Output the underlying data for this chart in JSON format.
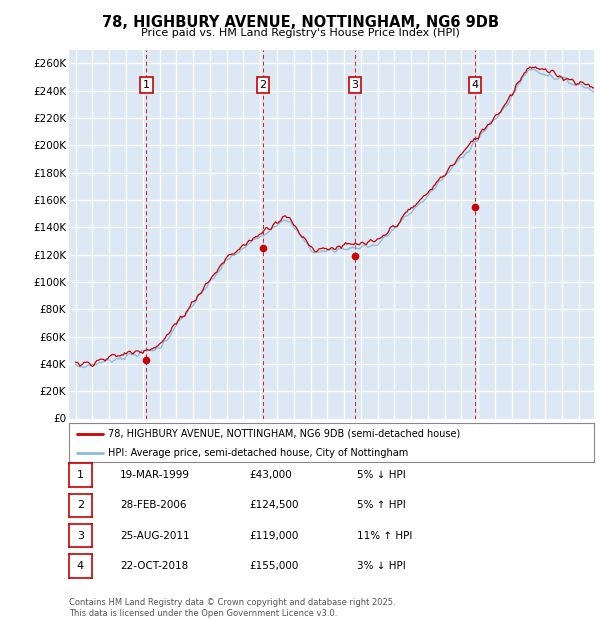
{
  "title": "78, HIGHBURY AVENUE, NOTTINGHAM, NG6 9DB",
  "subtitle": "Price paid vs. HM Land Registry's House Price Index (HPI)",
  "ylabel_ticks": [
    "£0",
    "£20K",
    "£40K",
    "£60K",
    "£80K",
    "£100K",
    "£120K",
    "£140K",
    "£160K",
    "£180K",
    "£200K",
    "£220K",
    "£240K",
    "£260K"
  ],
  "y_values": [
    0,
    20000,
    40000,
    60000,
    80000,
    100000,
    120000,
    140000,
    160000,
    180000,
    200000,
    220000,
    240000,
    260000
  ],
  "background_color": "#dce9f5",
  "plot_bg": "#dce9f5",
  "grid_color": "#ffffff",
  "sale_points": [
    {
      "date_num": 1999.21,
      "price": 43000,
      "label": "1"
    },
    {
      "date_num": 2006.16,
      "price": 124500,
      "label": "2"
    },
    {
      "date_num": 2011.65,
      "price": 119000,
      "label": "3"
    },
    {
      "date_num": 2018.81,
      "price": 155000,
      "label": "4"
    }
  ],
  "legend_line1_color": "#cc0000",
  "legend_line1_label": "78, HIGHBURY AVENUE, NOTTINGHAM, NG6 9DB (semi-detached house)",
  "legend_line2_color": "#88bbdd",
  "legend_line2_label": "HPI: Average price, semi-detached house, City of Nottingham",
  "table_rows": [
    {
      "num": "1",
      "date": "19-MAR-1999",
      "price": "£43,000",
      "change": "5% ↓ HPI"
    },
    {
      "num": "2",
      "date": "28-FEB-2006",
      "price": "£124,500",
      "change": "5% ↑ HPI"
    },
    {
      "num": "3",
      "date": "25-AUG-2011",
      "price": "£119,000",
      "change": "11% ↑ HPI"
    },
    {
      "num": "4",
      "date": "22-OCT-2018",
      "price": "£155,000",
      "change": "3% ↓ HPI"
    }
  ],
  "footer": "Contains HM Land Registry data © Crown copyright and database right 2025.\nThis data is licensed under the Open Government Licence v3.0.",
  "dashed_line_dates": [
    1999.21,
    2006.16,
    2011.65,
    2018.81
  ]
}
